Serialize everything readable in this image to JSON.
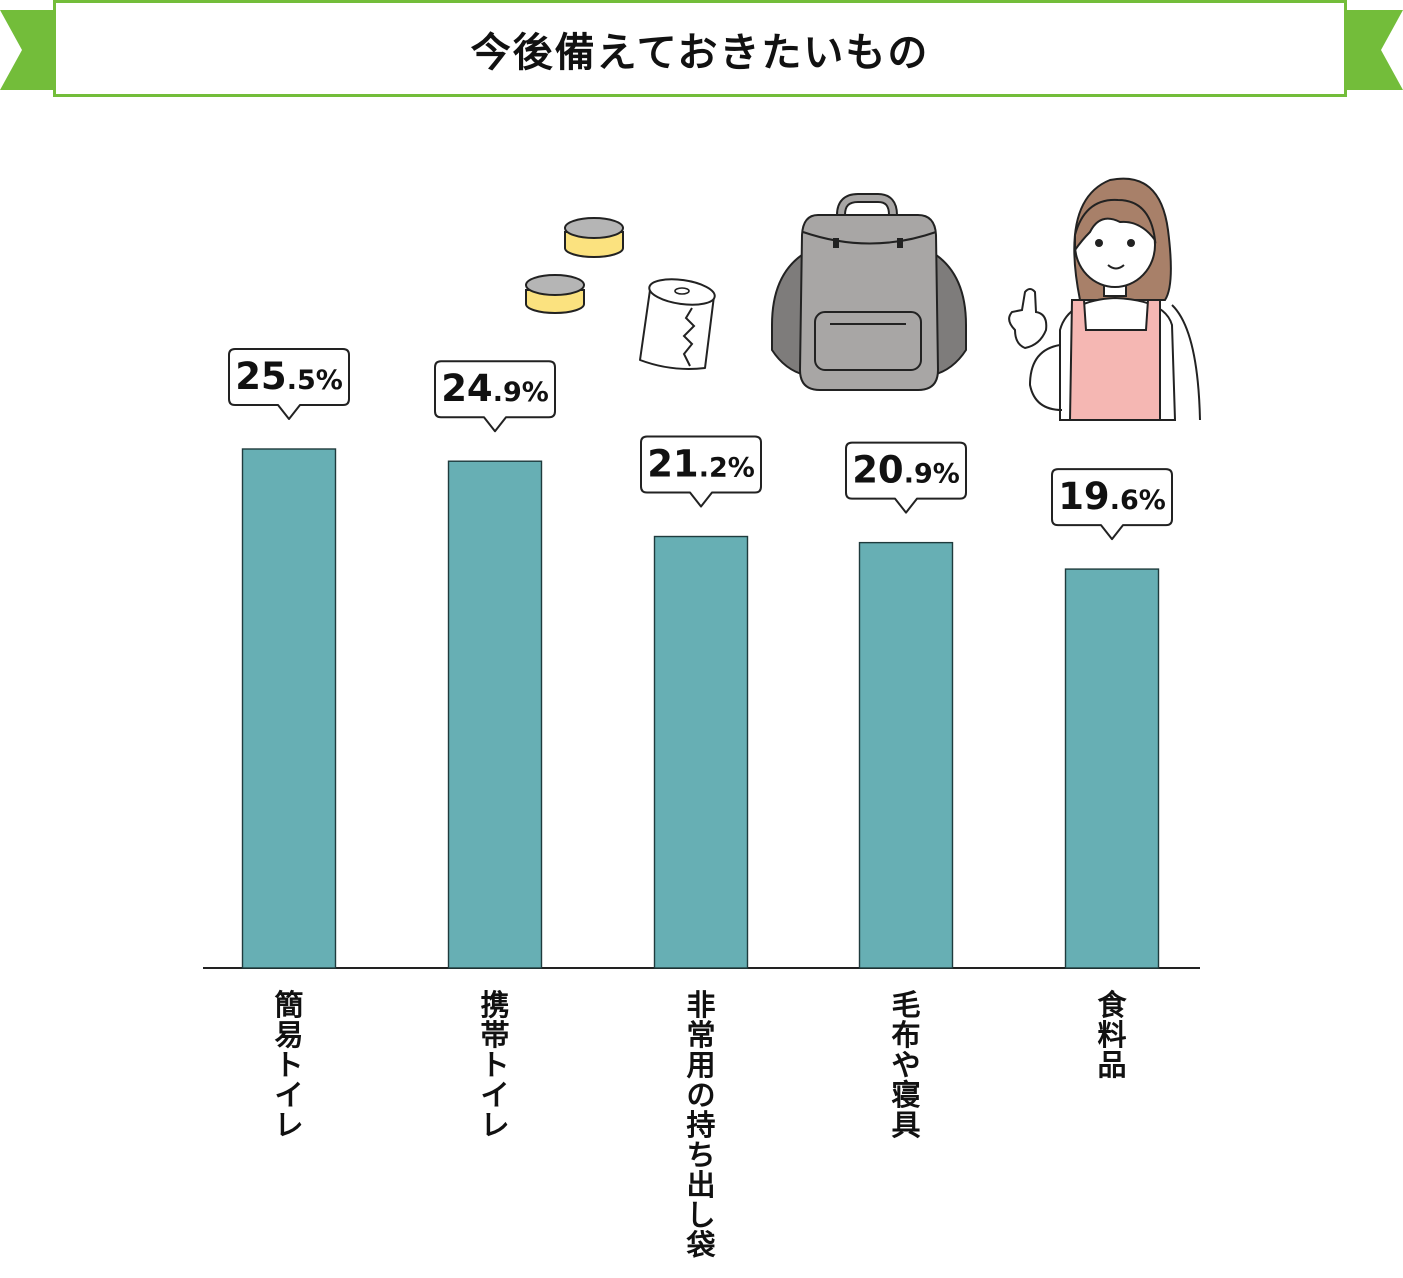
{
  "title": "今後備えておきたいもの",
  "colors": {
    "bar": "#67afb4",
    "banner_border": "#73bd3a",
    "ribbon": "#73bd3a",
    "can_body": "#fbe27f",
    "can_lid": "#b5b5b5",
    "backpack": "#a8a6a5",
    "apron": "#f5b7b3",
    "hair": "#a88069"
  },
  "illustrations": [
    "canned-food-icon",
    "toilet-paper-icon",
    "backpack-icon",
    "woman-pointing-illustration"
  ],
  "chart_data": {
    "type": "bar",
    "title": "今後備えておきたいもの",
    "unit": "%",
    "categories": [
      "簡易トイレ",
      "携帯トイレ",
      "非常用の持ち出し袋",
      "毛布や寝具",
      "食料品"
    ],
    "values": [
      25.5,
      24.9,
      21.2,
      20.9,
      19.6
    ],
    "value_labels": [
      "25.5%",
      "24.9%",
      "21.2%",
      "20.9%",
      "19.6%"
    ],
    "ylim": [
      0,
      25.5
    ],
    "grid": false,
    "legend": "none",
    "data_labels": "callout bubbles above bars",
    "category_label_orientation": "vertical"
  }
}
